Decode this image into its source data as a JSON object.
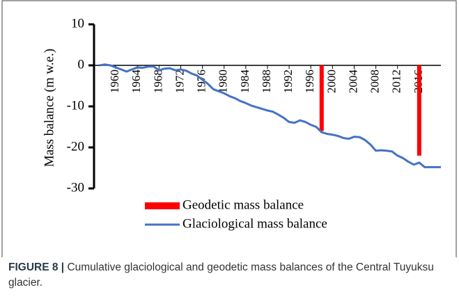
{
  "chart_data": {
    "type": "combo",
    "ylabel": "Mass balance (m w.e.)",
    "ylim": [
      -30,
      10
    ],
    "yticks": [
      -30,
      -20,
      -10,
      0,
      10
    ],
    "xlim": [
      1956,
      2020
    ],
    "xticks": [
      1960,
      1964,
      1968,
      1972,
      1976,
      1980,
      1984,
      1988,
      1992,
      1996,
      2000,
      2004,
      2008,
      2012,
      2016
    ],
    "series": [
      {
        "name": "Geodetic mass balance",
        "color": "#ff0000",
        "type": "bar",
        "x": [
          1998,
          2016
        ],
        "values": [
          -16,
          -22
        ]
      },
      {
        "name": "Glaciological mass balance",
        "color": "#4472c4",
        "type": "line",
        "x": [
          1957,
          1958,
          1959,
          1960,
          1961,
          1962,
          1963,
          1964,
          1965,
          1966,
          1967,
          1968,
          1969,
          1970,
          1971,
          1972,
          1973,
          1974,
          1975,
          1976,
          1977,
          1978,
          1979,
          1980,
          1981,
          1982,
          1983,
          1984,
          1985,
          1986,
          1987,
          1988,
          1989,
          1990,
          1991,
          1992,
          1993,
          1994,
          1995,
          1996,
          1997,
          1998,
          1999,
          2000,
          2001,
          2002,
          2003,
          2004,
          2005,
          2006,
          2007,
          2008,
          2009,
          2010,
          2011,
          2012,
          2013,
          2014,
          2015,
          2016,
          2017,
          2018,
          2019,
          2020
        ],
        "values": [
          0,
          0.2,
          0,
          -0.5,
          -1,
          -1.5,
          -1,
          -0.5,
          -0.6,
          -0.3,
          -0.3,
          -1.2,
          -0.8,
          -0.7,
          -1.2,
          -1,
          -1.3,
          -2,
          -2.5,
          -3.5,
          -4.5,
          -5.8,
          -6.3,
          -6.8,
          -7.5,
          -8,
          -8.7,
          -9.2,
          -9.8,
          -10.2,
          -10.6,
          -11,
          -11.3,
          -12,
          -12.8,
          -13.8,
          -14,
          -13.4,
          -13.8,
          -14.5,
          -15,
          -16.3,
          -16.7,
          -16.9,
          -17.2,
          -17.7,
          -17.9,
          -17.4,
          -17.5,
          -18.2,
          -19.3,
          -20.8,
          -20.7,
          -20.8,
          -21,
          -22,
          -22.6,
          -23.5,
          -24.2,
          -23.7,
          -24.8,
          -24.8,
          -24.8,
          -24.8
        ]
      }
    ]
  },
  "caption": {
    "label": "FIGURE 8 |",
    "text": "Cumulative glaciological and geodetic mass balances of the Central Tuyuksu glacier."
  }
}
